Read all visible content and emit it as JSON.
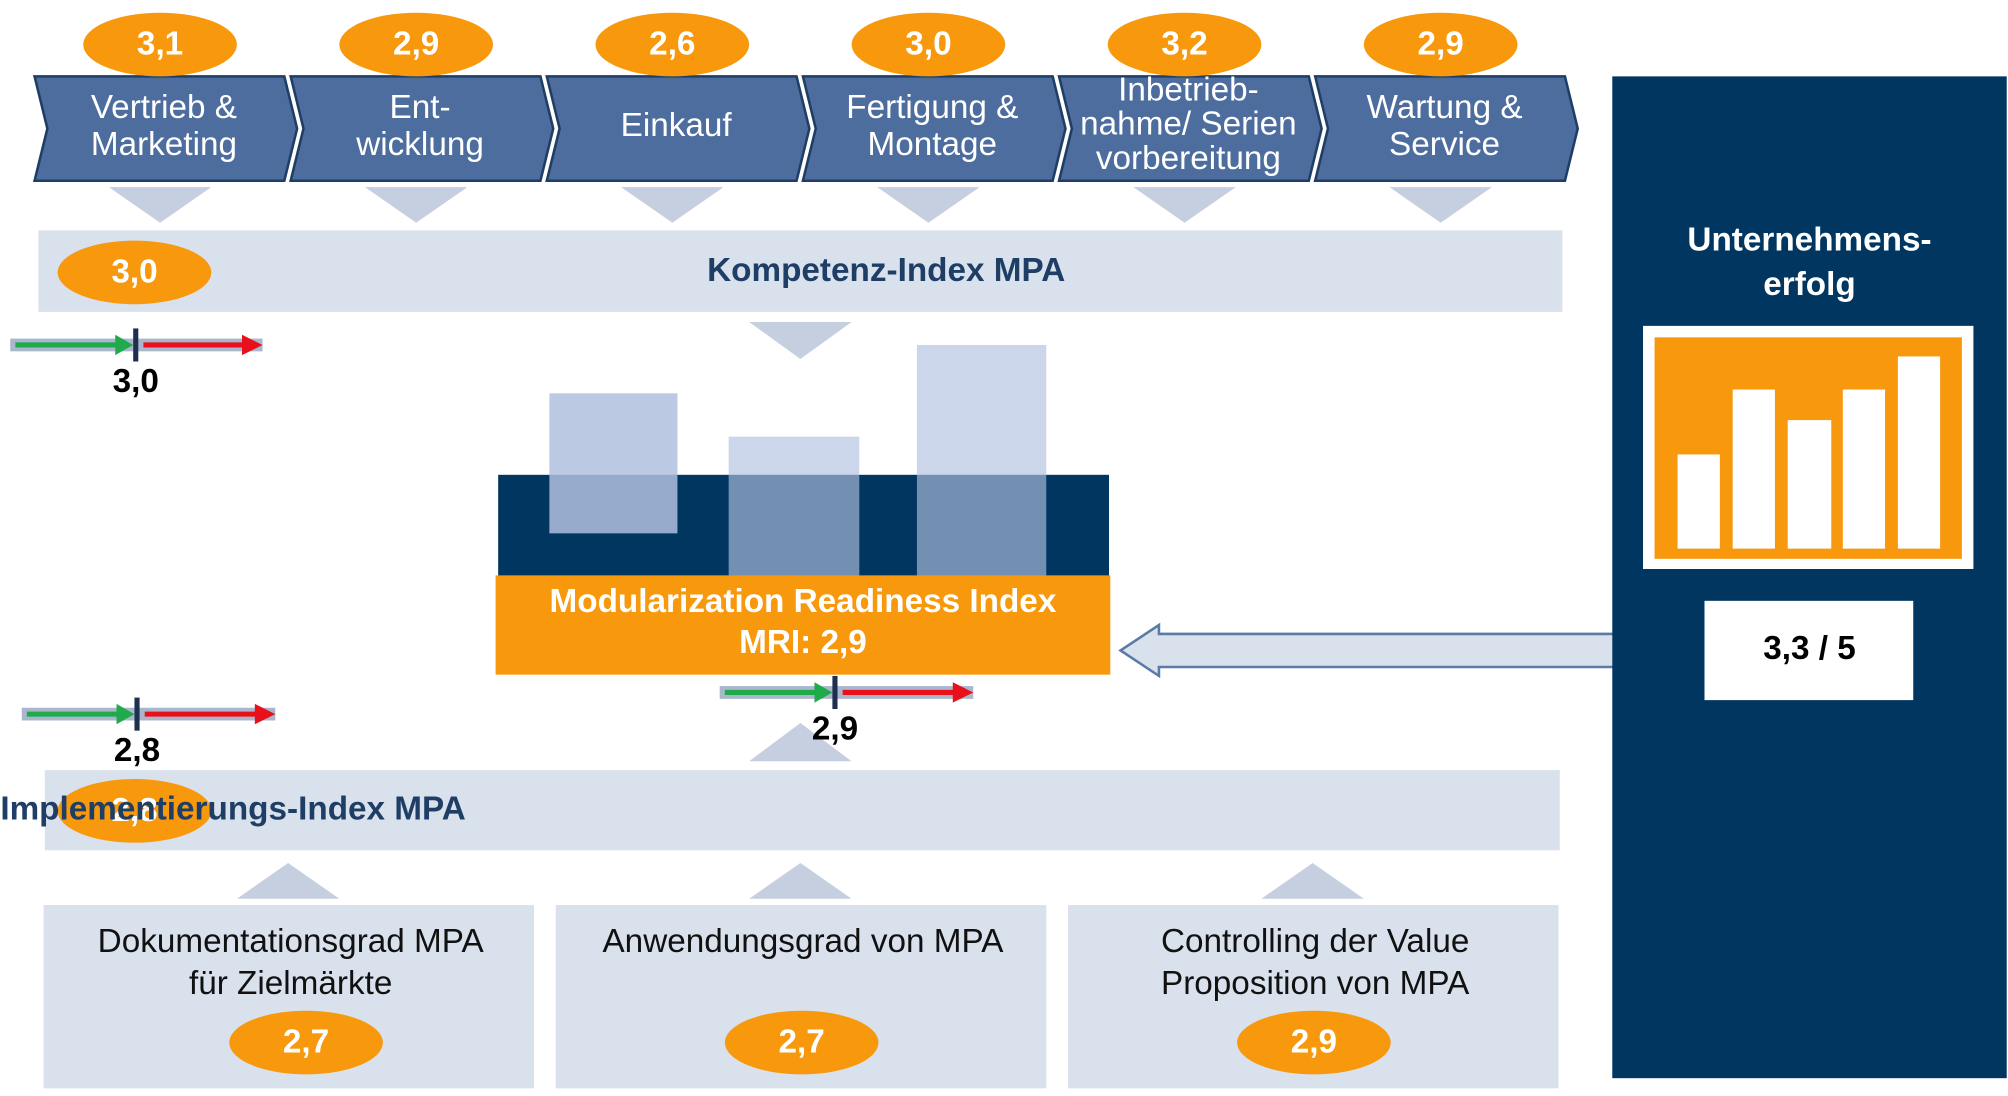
{
  "process": [
    {
      "score": "3,1",
      "label": [
        "Vertrieb &",
        "Marketing"
      ]
    },
    {
      "score": "2,9",
      "label": [
        "Ent-",
        "wicklung"
      ]
    },
    {
      "score": "2,6",
      "label": [
        "Einkauf"
      ]
    },
    {
      "score": "3,0",
      "label": [
        "Fertigung &",
        "Montage"
      ]
    },
    {
      "score": "3,2",
      "label": [
        "Inbetrieb-",
        "nahme/ Serien",
        "vorbereitung"
      ]
    },
    {
      "score": "2,9",
      "label": [
        "Wartung &",
        "Service"
      ]
    }
  ],
  "kompetenz": {
    "score": "3,0",
    "title": "Kompetenz-Index MPA",
    "indicator": "3,0"
  },
  "mri": {
    "title": "Modularization Readiness Index",
    "subtitle": "MRI: 2,9",
    "indicator": "2,9"
  },
  "implementierung": {
    "score": "2,8",
    "title": "Implementierungs-Index MPA",
    "indicator": "2,8"
  },
  "components": [
    {
      "label": [
        "Dokumentationsgrad MPA",
        "für Zielmärkte"
      ],
      "score": "2,7"
    },
    {
      "label": [
        "Anwendungsgrad von MPA"
      ],
      "score": "2,7"
    },
    {
      "label": [
        "Controlling der Value",
        "Proposition von MPA"
      ],
      "score": "2,9"
    }
  ],
  "success": {
    "title": [
      "Unternehmens-",
      "erfolg"
    ],
    "score": "3,3 / 5"
  }
}
